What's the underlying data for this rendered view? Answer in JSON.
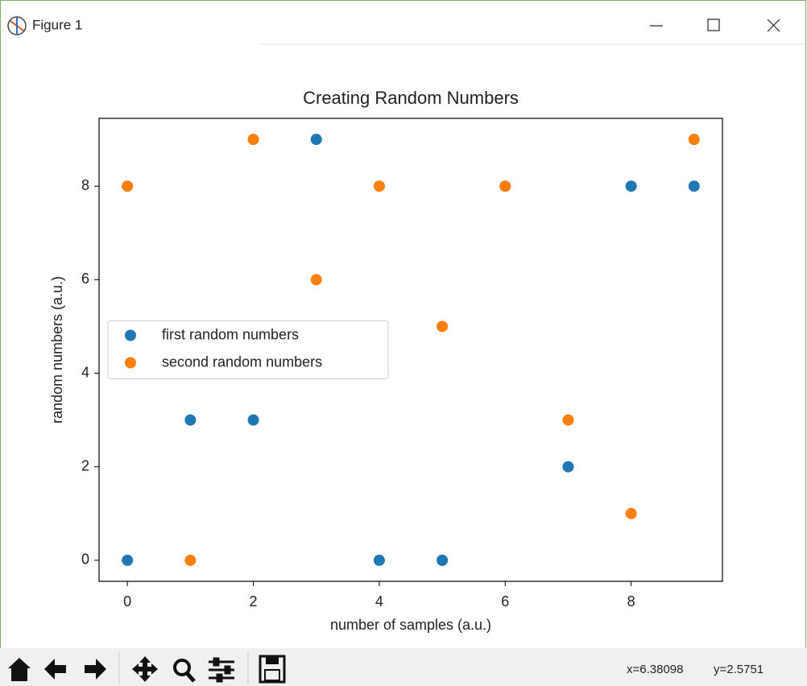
{
  "window": {
    "title": "Figure 1",
    "status": {
      "x": "x=6.38098",
      "y": "y=2.5751"
    }
  },
  "chart_data": {
    "type": "scatter",
    "title": "Creating Random Numbers",
    "xlabel": "number of samples (a.u.)",
    "ylabel": "random numbers (a.u.)",
    "x": [
      0,
      1,
      2,
      3,
      4,
      5,
      6,
      7,
      8,
      9
    ],
    "series": [
      {
        "name": "first random numbers",
        "color": "#1f77b4",
        "values": [
          0,
          3,
          3,
          9,
          0,
          0,
          8,
          2,
          8,
          8
        ]
      },
      {
        "name": "second random numbers",
        "color": "#ff7f0e",
        "values": [
          8,
          0,
          9,
          6,
          8,
          5,
          8,
          3,
          1,
          9
        ]
      }
    ],
    "xlim": [
      -0.45,
      9.45
    ],
    "ylim": [
      -0.45,
      9.45
    ],
    "xticks": [
      0,
      2,
      4,
      6,
      8
    ],
    "yticks": [
      0,
      2,
      4,
      6,
      8
    ],
    "grid": false,
    "legend": "center left"
  }
}
